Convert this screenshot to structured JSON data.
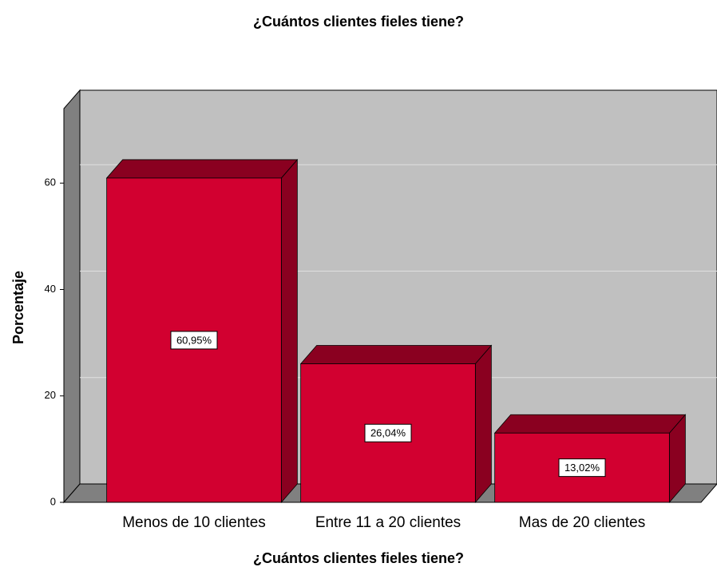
{
  "chart_data": {
    "type": "bar3d",
    "title": "¿Cuántos clientes fieles tiene?",
    "x_label": "¿Cuántos clientes fieles tiene?",
    "y_label": "Porcentaje",
    "categories": [
      "Menos de 10 clientes",
      "Entre 11 a 20 clientes",
      "Mas de 20 clientes"
    ],
    "values": [
      60.95,
      26.04,
      13.02
    ],
    "value_labels": [
      "60,95%",
      "26,04%",
      "13,02%"
    ],
    "color": "#d20030",
    "ylim": [
      0,
      74
    ],
    "yticks": [
      0,
      20,
      40,
      60
    ],
    "grid": true
  }
}
